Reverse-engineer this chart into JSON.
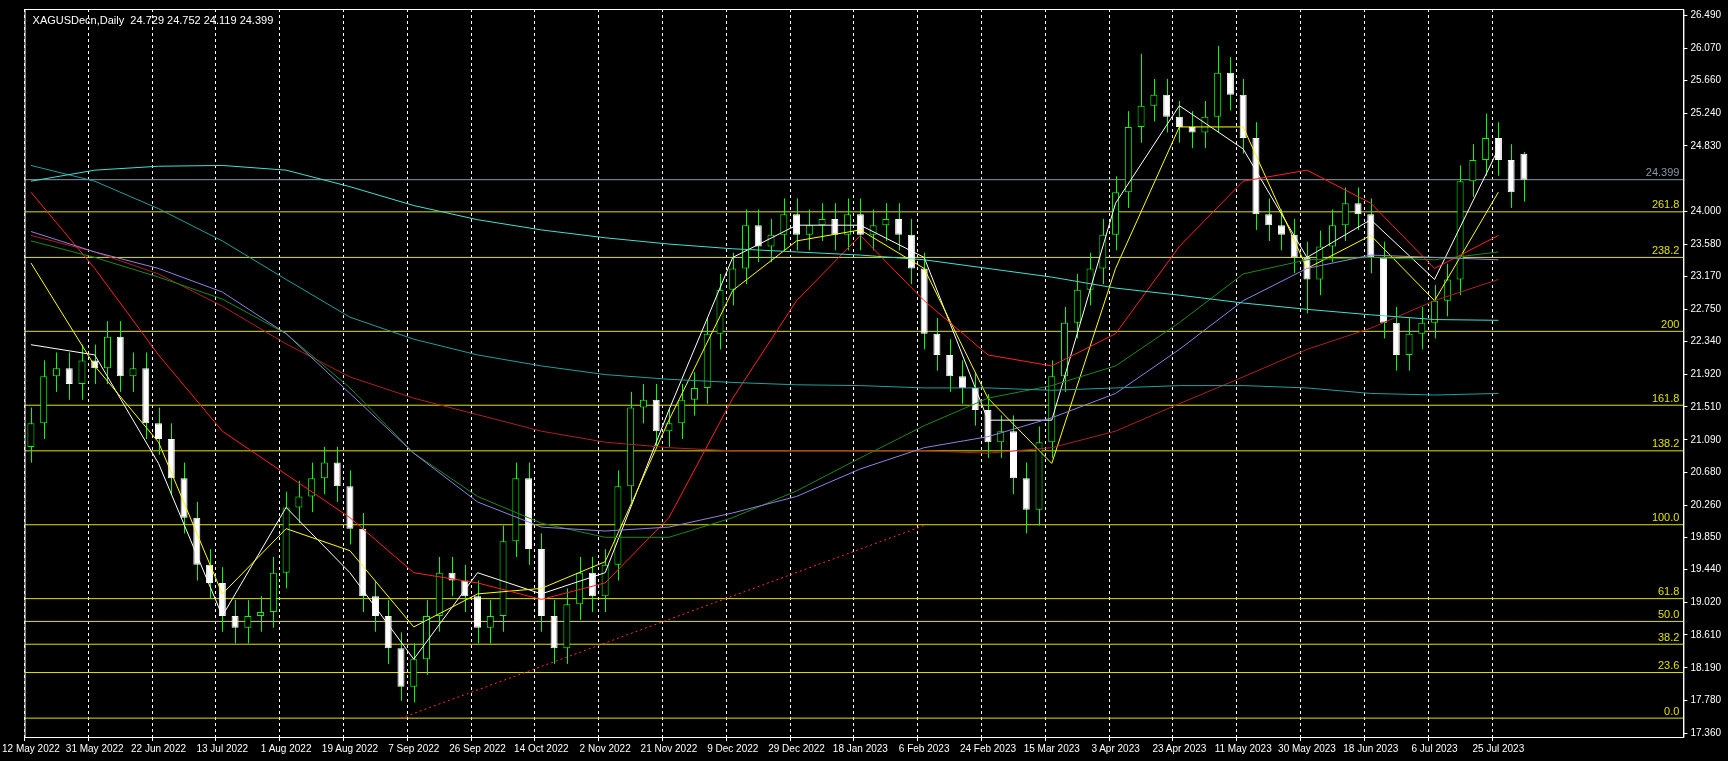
{
  "chart_data": {
    "type": "candlestick",
    "title": "XAGUSDecn,Daily  24.729 24.752 24.119 24.399",
    "colors": [
      "#00ff00",
      "#00ff00",
      "#00ff00",
      "#ffffff",
      "#00ff00",
      "#ffffff",
      "#00ff00",
      "#ffffff",
      "#00ff00",
      "#ffffff",
      "#ffffff",
      "#ffffff",
      "#ffffff",
      "#ffffff",
      "#ffffff",
      "#ffffff",
      "#ffffff",
      "#00ff00",
      "#00ff00",
      "#00ff00",
      "#00ff00",
      "#00ff00",
      "#00ff00",
      "#00ff00",
      "#ffffff",
      "#ffffff",
      "#ffffff",
      "#ffffff",
      "#ffffff",
      "#ffffff",
      "#00ff00",
      "#00ff00",
      "#00ff00",
      "#ffffff",
      "#ffffff",
      "#ffffff",
      "#00ff00",
      "#00ff00",
      "#00ff00",
      "#ffffff",
      "#ffffff",
      "#ffffff",
      "#00ff00",
      "#00ff00",
      "#ffffff",
      "#00ff00",
      "#00ff00",
      "#00ff00",
      "#00ff00",
      "#ffffff",
      "#00ff00",
      "#00ff00",
      "#00ff00",
      "#00ff00",
      "#00ff00",
      "#00ff00",
      "#00ff00",
      "#ffffff",
      "#00ff00",
      "#00ff00",
      "#ffffff",
      "#00ff00",
      "#00ff00",
      "#ffffff",
      "#00ff00",
      "#ffffff",
      "#00ff00",
      "#00ff00",
      "#ffffff",
      "#ffffff",
      "#ffffff",
      "#ffffff",
      "#ffffff",
      "#ffffff",
      "#ffffff",
      "#ffffff",
      "#00ff00",
      "#ffffff",
      "#ffffff",
      "#00ff00",
      "#00ff00",
      "#00ff00",
      "#00ff00",
      "#00ff00",
      "#00ff00",
      "#00ff00",
      "#00ff00",
      "#00ff00",
      "#00ff00",
      "#ffffff",
      "#ffffff",
      "#ffffff",
      "#00ff00",
      "#00ff00",
      "#ffffff",
      "#ffffff",
      "#ffffff",
      "#ffffff",
      "#ffffff",
      "#ffffff",
      "#ffffff",
      "#00ff00",
      "#00ff00",
      "#00ff00",
      "#ffffff",
      "#ffffff",
      "#ffffff",
      "#ffffff",
      "#00ff00",
      "#00ff00",
      "#00ff00",
      "#00ff00",
      "#00ff00",
      "#00ff00",
      "#00ff00",
      "#ffffff",
      "#ffffff",
      "#ffffff",
      null,
      null,
      null,
      null,
      null,
      null,
      null,
      null,
      null,
      null,
      null,
      null
    ],
    "categories": [
      "12 May 2022",
      null,
      null,
      null,
      null,
      "31 May 2022",
      null,
      null,
      null,
      null,
      "22 Jun 2022",
      null,
      null,
      null,
      null,
      "13 Jul 2022",
      null,
      null,
      null,
      null,
      "1 Aug 2022",
      null,
      null,
      null,
      null,
      "19 Aug 2022",
      null,
      null,
      null,
      null,
      "7 Sep 2022",
      null,
      null,
      null,
      null,
      "26 Sep 2022",
      null,
      null,
      null,
      null,
      "14 Oct 2022",
      null,
      null,
      null,
      null,
      "2 Nov 2022",
      null,
      null,
      null,
      null,
      "21 Nov 2022",
      null,
      null,
      null,
      null,
      "9 Dec 2022",
      null,
      null,
      null,
      null,
      "29 Dec 2022",
      null,
      null,
      null,
      null,
      "18 Jan 2023",
      null,
      null,
      null,
      null,
      "6 Feb 2023",
      null,
      null,
      null,
      null,
      "24 Feb 2023",
      null,
      null,
      null,
      null,
      "15 Mar 2023",
      null,
      null,
      null,
      null,
      "3 Apr 2023",
      null,
      null,
      null,
      null,
      "23 Apr 2023",
      null,
      null,
      null,
      null,
      "11 May 2023",
      null,
      null,
      null,
      null,
      "30 May 2023",
      null,
      null,
      null,
      null,
      "18 Jun 2023",
      null,
      null,
      null,
      null,
      "6 Jul 2023",
      null,
      null,
      null,
      null,
      "25 Jul 2023",
      null,
      null,
      null,
      null,
      null,
      null,
      null,
      null,
      null,
      null,
      null,
      null,
      null,
      null
    ],
    "ohlc": [
      [
        21.0,
        21.5,
        20.8,
        21.3
      ],
      [
        21.3,
        22.1,
        21.1,
        21.9
      ],
      [
        21.9,
        22.2,
        21.7,
        22.0
      ],
      [
        22.0,
        22.2,
        21.6,
        21.8
      ],
      [
        21.8,
        22.3,
        21.6,
        22.1
      ],
      [
        22.1,
        22.3,
        21.8,
        22.0
      ],
      [
        22.0,
        22.6,
        21.8,
        22.4
      ],
      [
        22.4,
        22.6,
        21.7,
        21.9
      ],
      [
        21.9,
        22.2,
        21.7,
        22.0
      ],
      [
        22.0,
        22.2,
        21.1,
        21.3
      ],
      [
        21.3,
        21.5,
        20.9,
        21.1
      ],
      [
        21.1,
        21.3,
        20.4,
        20.6
      ],
      [
        20.6,
        20.8,
        19.9,
        20.1
      ],
      [
        20.1,
        20.3,
        19.3,
        19.5
      ],
      [
        19.5,
        19.7,
        19.07,
        19.27
      ],
      [
        19.27,
        19.47,
        18.65,
        18.85
      ],
      [
        18.85,
        19.05,
        18.5,
        18.7
      ],
      [
        18.7,
        19.05,
        18.5,
        18.85
      ],
      [
        18.85,
        19.1,
        18.65,
        18.9
      ],
      [
        18.9,
        19.6,
        18.7,
        19.4
      ],
      [
        19.4,
        20.43,
        19.2,
        20.23
      ],
      [
        20.23,
        20.57,
        20.03,
        20.37
      ],
      [
        20.37,
        20.8,
        20.17,
        20.6
      ],
      [
        20.6,
        21.0,
        20.4,
        20.8
      ],
      [
        20.8,
        21.0,
        20.3,
        20.5
      ],
      [
        20.5,
        20.7,
        19.76,
        19.96
      ],
      [
        19.96,
        20.16,
        18.9,
        19.1
      ],
      [
        19.1,
        19.3,
        18.65,
        18.85
      ],
      [
        18.85,
        19.05,
        18.24,
        18.44
      ],
      [
        18.44,
        18.64,
        17.77,
        17.95
      ],
      [
        17.95,
        18.5,
        17.75,
        18.3
      ],
      [
        18.3,
        19.05,
        18.1,
        18.85
      ],
      [
        18.85,
        19.6,
        18.65,
        19.4
      ],
      [
        19.4,
        19.6,
        19.1,
        19.3
      ],
      [
        19.3,
        19.5,
        18.9,
        19.1
      ],
      [
        19.1,
        19.3,
        18.5,
        18.7
      ],
      [
        18.7,
        19.05,
        18.5,
        18.85
      ],
      [
        18.85,
        20.0,
        18.65,
        19.8
      ],
      [
        19.8,
        20.8,
        19.6,
        20.6
      ],
      [
        20.6,
        20.8,
        19.5,
        19.7
      ],
      [
        19.7,
        19.9,
        18.65,
        18.85
      ],
      [
        18.85,
        19.05,
        18.24,
        18.44
      ],
      [
        18.44,
        19.2,
        18.24,
        19.0
      ],
      [
        19.0,
        19.6,
        18.8,
        19.4
      ],
      [
        19.4,
        19.6,
        18.9,
        19.1
      ],
      [
        19.1,
        19.7,
        18.9,
        19.5
      ],
      [
        19.5,
        20.7,
        19.3,
        20.5
      ],
      [
        20.5,
        21.7,
        20.3,
        21.5
      ],
      [
        21.5,
        21.8,
        21.3,
        21.6
      ],
      [
        21.6,
        21.8,
        21.0,
        21.2
      ],
      [
        21.2,
        21.5,
        21.0,
        21.3
      ],
      [
        21.3,
        21.8,
        21.1,
        21.6
      ],
      [
        21.6,
        21.95,
        21.4,
        21.75
      ],
      [
        21.75,
        22.64,
        21.55,
        22.44
      ],
      [
        22.44,
        23.2,
        22.24,
        23.0
      ],
      [
        23.0,
        23.47,
        22.8,
        23.27
      ],
      [
        23.27,
        24.02,
        23.07,
        23.82
      ],
      [
        23.82,
        24.02,
        23.35,
        23.55
      ],
      [
        23.55,
        23.9,
        23.35,
        23.7
      ],
      [
        23.7,
        24.16,
        23.5,
        23.96
      ],
      [
        23.96,
        24.16,
        23.5,
        23.7
      ],
      [
        23.7,
        24.02,
        23.5,
        23.82
      ],
      [
        23.82,
        24.1,
        23.62,
        23.9
      ],
      [
        23.9,
        24.1,
        23.5,
        23.7
      ],
      [
        23.7,
        24.16,
        23.5,
        23.96
      ],
      [
        23.96,
        24.16,
        23.5,
        23.7
      ],
      [
        23.7,
        24.02,
        23.5,
        23.82
      ],
      [
        23.82,
        24.1,
        23.62,
        23.9
      ],
      [
        23.9,
        24.1,
        23.5,
        23.7
      ],
      [
        23.7,
        23.9,
        23.07,
        23.27
      ],
      [
        23.27,
        23.47,
        22.24,
        22.44
      ],
      [
        22.44,
        22.64,
        21.97,
        22.17
      ],
      [
        22.17,
        22.37,
        21.7,
        21.9
      ],
      [
        21.9,
        22.1,
        21.55,
        21.75
      ],
      [
        21.75,
        21.95,
        21.27,
        21.47
      ],
      [
        21.47,
        21.67,
        20.86,
        21.06
      ],
      [
        21.06,
        21.4,
        20.86,
        21.2
      ],
      [
        21.2,
        21.4,
        20.4,
        20.6
      ],
      [
        20.6,
        20.8,
        19.9,
        20.2
      ],
      [
        20.2,
        21.26,
        20.0,
        21.06
      ],
      [
        21.06,
        22.1,
        20.86,
        21.9
      ],
      [
        21.9,
        22.78,
        21.7,
        22.58
      ],
      [
        22.58,
        23.2,
        22.38,
        23.0
      ],
      [
        23.0,
        23.47,
        22.8,
        23.27
      ],
      [
        23.27,
        23.9,
        23.07,
        23.7
      ],
      [
        23.7,
        24.44,
        23.5,
        24.24
      ],
      [
        24.24,
        25.27,
        24.04,
        25.07
      ],
      [
        25.07,
        26.0,
        24.87,
        25.34
      ],
      [
        25.34,
        25.68,
        25.14,
        25.48
      ],
      [
        25.48,
        25.68,
        25.0,
        25.2
      ],
      [
        25.2,
        25.4,
        24.87,
        25.07
      ],
      [
        25.07,
        25.27,
        24.8,
        25.0
      ],
      [
        25.0,
        25.4,
        24.8,
        25.2
      ],
      [
        25.2,
        26.1,
        25.0,
        25.76
      ],
      [
        25.76,
        25.96,
        25.28,
        25.48
      ],
      [
        25.48,
        25.68,
        24.73,
        24.93
      ],
      [
        24.93,
        25.13,
        23.76,
        23.96
      ],
      [
        23.96,
        24.16,
        23.62,
        23.82
      ],
      [
        23.82,
        24.02,
        23.5,
        23.7
      ],
      [
        23.7,
        23.9,
        23.21,
        23.41
      ],
      [
        23.41,
        23.61,
        22.7,
        23.13
      ],
      [
        23.13,
        23.75,
        22.93,
        23.55
      ],
      [
        23.55,
        24.02,
        23.35,
        23.82
      ],
      [
        23.82,
        24.3,
        23.62,
        24.1
      ],
      [
        24.1,
        24.3,
        23.76,
        23.96
      ],
      [
        23.96,
        24.16,
        23.21,
        23.41
      ],
      [
        23.41,
        23.61,
        22.38,
        22.58
      ],
      [
        22.58,
        22.78,
        21.97,
        22.17
      ],
      [
        22.17,
        22.64,
        21.97,
        22.44
      ],
      [
        22.44,
        22.78,
        22.24,
        22.58
      ],
      [
        22.58,
        23.06,
        22.38,
        22.86
      ],
      [
        22.86,
        23.33,
        22.66,
        23.13
      ],
      [
        23.13,
        24.58,
        22.93,
        24.38
      ],
      [
        24.38,
        24.85,
        24.18,
        24.65
      ],
      [
        24.65,
        25.24,
        24.45,
        24.93
      ],
      [
        24.93,
        25.13,
        24.45,
        24.65
      ],
      [
        24.65,
        24.85,
        24.04,
        24.24
      ],
      [
        24.729,
        24.752,
        24.119,
        24.399
      ],
      null,
      null,
      null,
      null,
      null,
      null,
      null,
      null,
      null,
      null,
      null,
      null
    ],
    "series": [
      {
        "type": "line",
        "color": "#40e0d0",
        "values": [
          24.38,
          null,
          null,
          null,
          null,
          24.52,
          null,
          null,
          null,
          null,
          24.57,
          null,
          null,
          null,
          null,
          24.58,
          null,
          null,
          null,
          null,
          24.52,
          null,
          null,
          null,
          null,
          24.31,
          null,
          null,
          null,
          null,
          24.07,
          null,
          null,
          null,
          null,
          23.89,
          null,
          null,
          null,
          null,
          23.76,
          null,
          null,
          null,
          null,
          23.66,
          null,
          null,
          null,
          null,
          23.58,
          null,
          null,
          null,
          null,
          23.52,
          null,
          null,
          null,
          null,
          23.48,
          null,
          null,
          null,
          null,
          23.44,
          null,
          null,
          null,
          null,
          23.38,
          null,
          null,
          null,
          null,
          23.27,
          null,
          null,
          null,
          null,
          23.16,
          null,
          null,
          null,
          null,
          23.02,
          null,
          null,
          null,
          null,
          22.93,
          null,
          null,
          null,
          null,
          22.83,
          null,
          null,
          null,
          null,
          22.75,
          null,
          null,
          null,
          null,
          22.68,
          null,
          null,
          null,
          null,
          22.62,
          null,
          null,
          null,
          null,
          22.61,
          null,
          null,
          null,
          null,
          null,
          null,
          null,
          null,
          null,
          null,
          null,
          null,
          null,
          null
        ]
      },
      {
        "type": "line",
        "color": "#20a0a0",
        "values": [
          24.58,
          null,
          null,
          null,
          null,
          24.38,
          null,
          null,
          null,
          null,
          24.03,
          null,
          null,
          null,
          null,
          23.62,
          null,
          null,
          null,
          null,
          23.13,
          null,
          null,
          null,
          null,
          22.65,
          null,
          null,
          null,
          null,
          22.37,
          null,
          null,
          null,
          null,
          22.17,
          null,
          null,
          null,
          null,
          22.03,
          null,
          null,
          null,
          null,
          21.92,
          null,
          null,
          null,
          null,
          21.86,
          null,
          null,
          null,
          null,
          21.82,
          null,
          null,
          null,
          null,
          21.79,
          null,
          null,
          null,
          null,
          21.78,
          null,
          null,
          null,
          null,
          21.75,
          null,
          null,
          null,
          null,
          21.75,
          null,
          null,
          null,
          null,
          21.72,
          null,
          null,
          null,
          null,
          21.75,
          null,
          null,
          null,
          null,
          21.78,
          null,
          null,
          null,
          null,
          21.78,
          null,
          null,
          null,
          null,
          21.75,
          null,
          null,
          null,
          null,
          21.68,
          null,
          null,
          null,
          null,
          21.66,
          null,
          null,
          null,
          null,
          21.68,
          null,
          null,
          null,
          null,
          null,
          null,
          null,
          null,
          null,
          null,
          null,
          null,
          null,
          null
        ]
      },
      {
        "type": "line",
        "color": "#9080e0",
        "values": [
          23.74,
          null,
          null,
          null,
          null,
          23.48,
          null,
          null,
          null,
          null,
          23.27,
          null,
          null,
          null,
          null,
          22.97,
          null,
          null,
          null,
          null,
          22.44,
          null,
          null,
          null,
          null,
          21.68,
          null,
          null,
          null,
          null,
          20.92,
          null,
          null,
          null,
          null,
          20.3,
          null,
          null,
          null,
          null,
          19.98,
          null,
          null,
          null,
          null,
          19.93,
          null,
          null,
          null,
          null,
          19.98,
          null,
          null,
          null,
          null,
          20.16,
          null,
          null,
          null,
          null,
          20.37,
          null,
          null,
          null,
          null,
          20.72,
          null,
          null,
          null,
          null,
          20.99,
          null,
          null,
          null,
          null,
          21.13,
          null,
          null,
          null,
          null,
          21.37,
          null,
          null,
          null,
          null,
          21.68,
          null,
          null,
          null,
          null,
          22.24,
          null,
          null,
          null,
          null,
          22.86,
          null,
          null,
          null,
          null,
          23.27,
          null,
          null,
          null,
          null,
          23.44,
          null,
          null,
          null,
          null,
          23.41,
          null,
          null,
          null,
          null,
          23.38,
          null,
          null,
          null,
          null,
          null,
          null,
          null,
          null,
          null,
          null,
          null,
          null,
          null,
          null
        ]
      },
      {
        "type": "line",
        "color": "#1a8a1a",
        "values": [
          23.62,
          null,
          null,
          null,
          null,
          23.41,
          null,
          null,
          null,
          null,
          23.16,
          null,
          null,
          null,
          null,
          22.88,
          null,
          null,
          null,
          null,
          22.44,
          null,
          null,
          null,
          null,
          21.75,
          null,
          null,
          null,
          null,
          20.92,
          null,
          null,
          null,
          null,
          20.37,
          null,
          null,
          null,
          null,
          20.03,
          null,
          null,
          null,
          null,
          19.85,
          null,
          null,
          null,
          null,
          19.85,
          null,
          null,
          null,
          null,
          20.1,
          null,
          null,
          null,
          null,
          20.44,
          null,
          null,
          null,
          null,
          20.86,
          null,
          null,
          null,
          null,
          21.27,
          null,
          null,
          null,
          null,
          21.62,
          null,
          null,
          null,
          null,
          21.78,
          null,
          null,
          null,
          null,
          22.03,
          null,
          null,
          null,
          null,
          22.58,
          null,
          null,
          null,
          null,
          23.2,
          null,
          null,
          null,
          null,
          23.38,
          null,
          null,
          null,
          null,
          23.41,
          null,
          null,
          null,
          null,
          23.38,
          null,
          null,
          null,
          null,
          23.48,
          null,
          null,
          null,
          null,
          null,
          null,
          null,
          null,
          null,
          null,
          null,
          null,
          null,
          null
        ]
      },
      {
        "type": "line",
        "color": "#b02020",
        "values": [
          23.69,
          null,
          null,
          null,
          null,
          23.48,
          null,
          null,
          null,
          null,
          23.2,
          null,
          null,
          null,
          null,
          22.79,
          null,
          null,
          null,
          null,
          22.31,
          null,
          null,
          null,
          null,
          21.89,
          null,
          null,
          null,
          null,
          21.62,
          null,
          null,
          null,
          null,
          21.41,
          null,
          null,
          null,
          null,
          21.2,
          null,
          null,
          null,
          null,
          21.06,
          null,
          null,
          null,
          null,
          20.99,
          null,
          null,
          null,
          null,
          20.95,
          null,
          null,
          null,
          null,
          20.95,
          null,
          null,
          null,
          null,
          20.95,
          null,
          null,
          null,
          null,
          20.95,
          null,
          null,
          null,
          null,
          20.92,
          null,
          null,
          null,
          null,
          20.99,
          null,
          null,
          null,
          null,
          21.2,
          null,
          null,
          null,
          null,
          21.55,
          null,
          null,
          null,
          null,
          21.89,
          null,
          null,
          null,
          null,
          22.24,
          null,
          null,
          null,
          null,
          22.51,
          null,
          null,
          null,
          null,
          22.86,
          null,
          null,
          null,
          null,
          23.13,
          null,
          null,
          null,
          null,
          null,
          null,
          null,
          null,
          null,
          null,
          null,
          null,
          null,
          null
        ]
      },
      {
        "type": "line",
        "color": "#ff2020",
        "values": [
          24.24,
          null,
          null,
          null,
          null,
          23.27,
          null,
          null,
          null,
          null,
          22.17,
          null,
          null,
          null,
          null,
          21.2,
          null,
          null,
          null,
          null,
          20.65,
          null,
          null,
          null,
          null,
          20.1,
          null,
          null,
          null,
          null,
          19.4,
          null,
          null,
          null,
          null,
          19.27,
          null,
          null,
          null,
          null,
          19.06,
          null,
          null,
          null,
          null,
          19.27,
          null,
          null,
          null,
          null,
          20.1,
          null,
          null,
          null,
          null,
          21.62,
          null,
          null,
          null,
          null,
          22.86,
          null,
          null,
          null,
          null,
          23.69,
          null,
          null,
          null,
          null,
          22.86,
          null,
          null,
          null,
          null,
          22.17,
          null,
          null,
          null,
          null,
          22.03,
          null,
          null,
          null,
          null,
          22.44,
          null,
          null,
          null,
          null,
          23.55,
          null,
          null,
          null,
          null,
          24.38,
          null,
          null,
          null,
          null,
          24.52,
          null,
          null,
          null,
          null,
          24.1,
          null,
          null,
          null,
          null,
          23.27,
          null,
          null,
          null,
          null,
          23.69,
          null,
          null,
          null,
          null,
          null,
          null,
          null,
          null,
          null,
          null,
          null,
          null,
          null,
          null
        ]
      },
      {
        "type": "line",
        "color": "#ffff00",
        "values": [
          23.34,
          null,
          null,
          null,
          null,
          22.03,
          null,
          null,
          null,
          null,
          21.06,
          null,
          null,
          null,
          null,
          19.13,
          null,
          null,
          null,
          null,
          19.96,
          null,
          null,
          null,
          null,
          19.68,
          null,
          null,
          null,
          null,
          18.71,
          null,
          null,
          null,
          null,
          19.13,
          null,
          null,
          null,
          null,
          19.2,
          null,
          null,
          null,
          null,
          19.54,
          null,
          null,
          null,
          null,
          21.34,
          null,
          null,
          null,
          null,
          22.99,
          null,
          null,
          null,
          null,
          23.62,
          null,
          null,
          null,
          null,
          23.76,
          null,
          null,
          null,
          null,
          23.27,
          null,
          null,
          null,
          null,
          21.62,
          null,
          null,
          null,
          null,
          20.79,
          null,
          null,
          null,
          null,
          23.27,
          null,
          null,
          null,
          null,
          25.07,
          null,
          null,
          null,
          null,
          25.07,
          null,
          null,
          null,
          null,
          23.27,
          null,
          null,
          null,
          null,
          23.69,
          null,
          null,
          null,
          null,
          22.86,
          null,
          null,
          null,
          null,
          24.24,
          null,
          null,
          null,
          null,
          null,
          null,
          null,
          null,
          null,
          null,
          null,
          null,
          null,
          null
        ]
      },
      {
        "type": "line",
        "color": "#ffffff",
        "values": [
          22.3,
          null,
          null,
          null,
          null,
          22.17,
          null,
          null,
          null,
          null,
          20.79,
          null,
          null,
          null,
          null,
          18.85,
          null,
          null,
          null,
          null,
          20.23,
          null,
          null,
          null,
          null,
          19.4,
          null,
          null,
          null,
          null,
          18.3,
          null,
          null,
          null,
          null,
          19.4,
          null,
          null,
          null,
          null,
          19.13,
          null,
          null,
          null,
          null,
          19.4,
          null,
          null,
          null,
          null,
          21.47,
          null,
          null,
          null,
          null,
          23.41,
          null,
          null,
          null,
          null,
          23.82,
          null,
          null,
          null,
          null,
          23.82,
          null,
          null,
          null,
          null,
          23.41,
          null,
          null,
          null,
          null,
          21.34,
          null,
          null,
          null,
          null,
          21.34,
          null,
          null,
          null,
          null,
          24.1,
          null,
          null,
          null,
          null,
          25.34,
          null,
          null,
          null,
          null,
          24.79,
          null,
          null,
          null,
          null,
          23.41,
          null,
          null,
          null,
          null,
          23.89,
          null,
          null,
          null,
          null,
          23.13,
          null,
          null,
          null,
          null,
          24.79,
          null,
          null,
          null,
          null,
          null,
          null,
          null,
          null,
          null,
          null,
          null,
          null,
          null,
          null
        ]
      },
      {
        "type": "line",
        "color": "#ff3030",
        "line_style": "dotted",
        "values": [
          null,
          null,
          null,
          null,
          null,
          null,
          null,
          null,
          null,
          null,
          null,
          null,
          null,
          null,
          null,
          null,
          null,
          null,
          null,
          null,
          null,
          null,
          null,
          null,
          null,
          null,
          null,
          null,
          null,
          17.55,
          null,
          null,
          null,
          null,
          null,
          null,
          null,
          null,
          null,
          null,
          null,
          null,
          null,
          null,
          null,
          null,
          null,
          null,
          null,
          null,
          null,
          null,
          null,
          null,
          null,
          null,
          null,
          null,
          null,
          null,
          null,
          null,
          null,
          null,
          null,
          null,
          null,
          null,
          null,
          null,
          20.0,
          null,
          null,
          null,
          null,
          null,
          null,
          null,
          null,
          null,
          null,
          null,
          null,
          null,
          null,
          null,
          null,
          null,
          null,
          null,
          null,
          null,
          null,
          null,
          null,
          null,
          null,
          null,
          null,
          null,
          null,
          null,
          null,
          null,
          null,
          null,
          null,
          null,
          null,
          null,
          null,
          null,
          null,
          null,
          null,
          null,
          null,
          null,
          null,
          null,
          null,
          null,
          null,
          null,
          null,
          null,
          null,
          null,
          null,
          null
        ]
      }
    ],
    "ref_lines": [
      {
        "axis": "y",
        "value": 24.399,
        "label": "24.399",
        "color": "#8899aa"
      },
      {
        "axis": "y",
        "value": 23.99,
        "color": "#e0e000"
      },
      {
        "axis": "y",
        "value": 23.41,
        "color": "#e0e000"
      },
      {
        "axis": "y",
        "value": 22.47,
        "color": "#e0e000"
      },
      {
        "axis": "y",
        "value": 21.53,
        "color": "#e0e000"
      },
      {
        "axis": "y",
        "value": 20.95,
        "color": "#e0e000"
      },
      {
        "axis": "y",
        "value": 20.01,
        "color": "#e0e000"
      },
      {
        "axis": "y",
        "value": 19.07,
        "color": "#e0e000"
      },
      {
        "axis": "y",
        "value": 18.78,
        "color": "#e0e000"
      },
      {
        "axis": "y",
        "value": 18.49,
        "color": "#e0e000"
      },
      {
        "axis": "y",
        "value": 18.13,
        "color": "#e0e000"
      },
      {
        "axis": "y",
        "value": 17.55,
        "color": "#e0e000"
      }
    ],
    "annotations": [
      {
        "text": "261.8",
        "y": 23.99
      },
      {
        "text": "238.2",
        "y": 23.41
      },
      {
        "text": "200",
        "y": 22.47
      },
      {
        "text": "161.8",
        "y": 21.53
      },
      {
        "text": "138.2",
        "y": 20.95
      },
      {
        "text": "100.0",
        "y": 20.01
      },
      {
        "text": "61.8",
        "y": 19.07
      },
      {
        "text": "50.0",
        "y": 18.78
      },
      {
        "text": "38.2",
        "y": 18.49
      },
      {
        "text": "23.6",
        "y": 18.13
      },
      {
        "text": "0.0",
        "y": 17.55
      }
    ],
    "ylim": [
      17.31,
      26.57
    ],
    "yticks": [
      {
        "value": 26.49,
        "label": "26.490"
      },
      {
        "value": 26.07,
        "label": "26.070"
      },
      {
        "value": 25.66,
        "label": "25.660"
      },
      {
        "value": 25.24,
        "label": "25.240"
      },
      {
        "value": 24.83,
        "label": "24.830"
      },
      {
        "value": 24.0,
        "label": "24.000"
      },
      {
        "value": 23.58,
        "label": "23.580"
      },
      {
        "value": 23.17,
        "label": "23.170"
      },
      {
        "value": 22.75,
        "label": "22.750"
      },
      {
        "value": 22.34,
        "label": "22.340"
      },
      {
        "value": 21.92,
        "label": "21.920"
      },
      {
        "value": 21.51,
        "label": "21.510"
      },
      {
        "value": 21.09,
        "label": "21.090"
      },
      {
        "value": 20.68,
        "label": "20.680"
      },
      {
        "value": 20.26,
        "label": "20.260"
      },
      {
        "value": 19.85,
        "label": "19.850"
      },
      {
        "value": 19.44,
        "label": "19.440"
      },
      {
        "value": 19.02,
        "label": "19.020"
      },
      {
        "value": 18.61,
        "label": "18.610"
      },
      {
        "value": 18.19,
        "label": "18.190"
      },
      {
        "value": 17.78,
        "label": "17.780"
      },
      {
        "value": 17.36,
        "label": "17.360"
      }
    ],
    "grid": "x",
    "legend": false,
    "marker": "none"
  }
}
